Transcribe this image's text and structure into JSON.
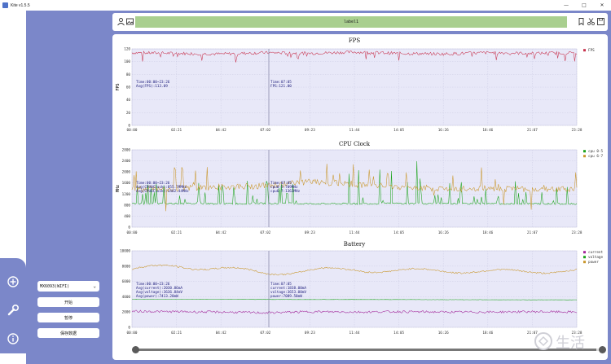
{
  "window": {
    "title": "Kite v1.5.5"
  },
  "device": {
    "selected": "MX6093(WIFI)"
  },
  "buttons": {
    "start": "开始",
    "pause": "暂停",
    "save": "保存数据"
  },
  "toolbar": {
    "label": "label1"
  },
  "x_ticks": [
    "00:00",
    "02:21",
    "04:42",
    "07:02",
    "09:23",
    "11:44",
    "14:05",
    "16:26",
    "18:46",
    "21:07",
    "23:28"
  ],
  "fps": {
    "title": "FPS",
    "ylabel": "FPS",
    "y_ticks": [
      "0",
      "20",
      "40",
      "60",
      "80",
      "100",
      "120"
    ],
    "legend": [
      "FPS"
    ],
    "info_left": [
      "Time:00:00~23:26",
      "Avg(FPS):113.09"
    ],
    "info_cursor": [
      "Time:07:05",
      "FPS:121.00"
    ]
  },
  "cpu": {
    "title": "CPU Clock",
    "ylabel": "MHz",
    "y_ticks": [
      "0",
      "400",
      "800",
      "1200",
      "1600",
      "2000",
      "2400",
      "2800"
    ],
    "legend": [
      "cpu 0-5",
      "cpu 6-7"
    ],
    "info_left": [
      "Time:00:00~23:26",
      "Avg(CPU0Clock):855.79MHz",
      "Avg(CPU6Clock):1402.44MHz"
    ],
    "info_cursor": [
      "Time:07:05",
      "cpu0-5:709MHz",
      "cpu6-7:1363MHz"
    ]
  },
  "battery": {
    "title": "Battery",
    "y_ticks": [
      "0",
      "2000",
      "4000",
      "6000",
      "8000",
      "10000"
    ],
    "legend": [
      "current",
      "voltage",
      "power"
    ],
    "info_left": [
      "Time:00:00~23:26",
      "Avg(current):2030.86mA",
      "Avg(voltage):3636.84mV",
      "Avg(power):7413.28mW"
    ],
    "info_cursor": [
      "Time:07:05",
      "current:1838.00mA",
      "voltage:3653.00mV",
      "power:7089.58mW"
    ]
  },
  "colors": {
    "fps": "#c8324d",
    "cpu_small": "#1aa31a",
    "cpu_big": "#c9962a",
    "current": "#a3249a",
    "voltage": "#1aa31a",
    "power": "#c9962a",
    "plot_bg": "#e8e8f8",
    "sidebar": "#7b87c9",
    "label_bar": "#a9cf8f"
  },
  "chart_data": [
    {
      "type": "line",
      "title": "FPS",
      "ylabel": "FPS",
      "x": [
        "00:00",
        "02:21",
        "04:42",
        "07:02",
        "09:23",
        "11:44",
        "14:05",
        "16:26",
        "18:46",
        "21:07",
        "23:28"
      ],
      "ylim": [
        0,
        120
      ],
      "series": [
        {
          "name": "FPS",
          "values": [
            114,
            113,
            112,
            114,
            113,
            115,
            113,
            112,
            114,
            113,
            114
          ]
        }
      ],
      "legend": "right",
      "grid": true
    },
    {
      "type": "line",
      "title": "CPU Clock",
      "ylabel": "MHz",
      "x": [
        "00:00",
        "02:21",
        "04:42",
        "07:02",
        "09:23",
        "11:44",
        "14:05",
        "16:26",
        "18:46",
        "21:07",
        "23:28"
      ],
      "ylim": [
        0,
        2800
      ],
      "series": [
        {
          "name": "cpu 0-5",
          "values": [
            850,
            860,
            850,
            860,
            850,
            850,
            860,
            850,
            850,
            850,
            850
          ]
        },
        {
          "name": "cpu 6-7",
          "values": [
            1380,
            1400,
            1450,
            1500,
            1650,
            1550,
            1450,
            1400,
            1380,
            1380,
            1380
          ]
        }
      ],
      "legend": "right",
      "grid": true
    },
    {
      "type": "line",
      "title": "Battery",
      "x": [
        "00:00",
        "02:21",
        "04:42",
        "07:02",
        "09:23",
        "11:44",
        "14:05",
        "16:26",
        "18:46",
        "21:07",
        "23:28"
      ],
      "ylim": [
        0,
        10000
      ],
      "series": [
        {
          "name": "current",
          "values": [
            2100,
            2050,
            2000,
            1900,
            2050,
            2000,
            2050,
            2000,
            2000,
            2050,
            2000
          ]
        },
        {
          "name": "voltage",
          "values": [
            3680,
            3670,
            3660,
            3650,
            3640,
            3640,
            3630,
            3620,
            3610,
            3600,
            3600
          ]
        },
        {
          "name": "power",
          "values": [
            7600,
            8000,
            7700,
            7100,
            7400,
            7600,
            7300,
            7500,
            7200,
            7400,
            7300
          ]
        }
      ],
      "legend": "right",
      "grid": true
    }
  ]
}
